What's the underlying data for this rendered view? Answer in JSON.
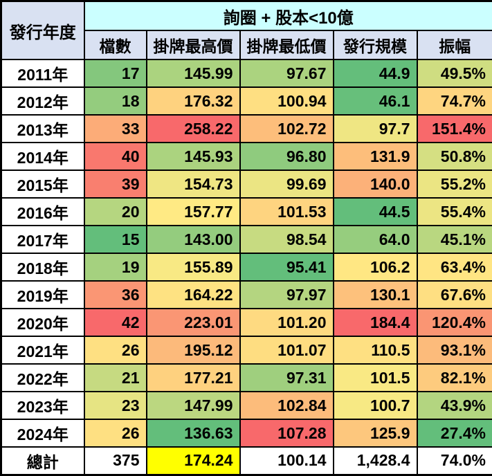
{
  "styles": {
    "header_top_bg": "#CBFFFF",
    "header_sub_bg": "#D9E1F2",
    "border_color": "#000000",
    "total_highlight": "#FFFF00"
  },
  "chart_data": {
    "type": "table",
    "title": "詢圈 + 股本<10億",
    "row_header": "發行年度",
    "columns": [
      "檔數",
      "掛牌最高價",
      "掛牌最低價",
      "發行規模",
      "振幅"
    ],
    "heatmap_scale": {
      "low": "#63BE7B",
      "mid": "#FFEB84",
      "high": "#F8696B"
    },
    "rows": [
      {
        "year": "2011年",
        "values": [
          "17",
          "145.99",
          "97.67",
          "44.9",
          "49.5%"
        ],
        "colors": [
          "#84C77D",
          "#ABD37F",
          "#ABD37F",
          "#64BE7B",
          "#CFDD81"
        ]
      },
      {
        "year": "2012年",
        "values": [
          "18",
          "176.32",
          "100.94",
          "46.1",
          "74.7%"
        ],
        "colors": [
          "#94CC7E",
          "#FED27F",
          "#FEDF82",
          "#67BF7B",
          "#FED580"
        ]
      },
      {
        "year": "2013年",
        "values": [
          "33",
          "258.22",
          "102.72",
          "97.7",
          "151.4%"
        ],
        "colors": [
          "#FCAC78",
          "#F8696B",
          "#FDBE7B",
          "#EFE683",
          "#F8696B"
        ]
      },
      {
        "year": "2014年",
        "values": [
          "40",
          "145.93",
          "96.80",
          "131.9",
          "50.8%"
        ],
        "colors": [
          "#F9786E",
          "#ABD37F",
          "#8FCB7E",
          "#FDBE7B",
          "#D5DF82"
        ]
      },
      {
        "year": "2015年",
        "values": [
          "39",
          "154.73",
          "99.69",
          "140.0",
          "55.2%"
        ],
        "colors": [
          "#F97F6F",
          "#EFE683",
          "#EBE583",
          "#FCB179",
          "#EBE583"
        ]
      },
      {
        "year": "2016年",
        "values": [
          "20",
          "157.77",
          "101.53",
          "44.5",
          "55.4%"
        ],
        "colors": [
          "#B5D680",
          "#FFEA84",
          "#FED480",
          "#63BE7B",
          "#ECE583"
        ]
      },
      {
        "year": "2017年",
        "values": [
          "15",
          "143.00",
          "98.54",
          "64.0",
          "45.1%"
        ],
        "colors": [
          "#63BE7B",
          "#94CC7E",
          "#C7DB81",
          "#96CD7E",
          "#B9D780"
        ]
      },
      {
        "year": "2018年",
        "values": [
          "19",
          "155.89",
          "95.41",
          "106.2",
          "63.4%"
        ],
        "colors": [
          "#A5D17F",
          "#F8E984",
          "#63BE7B",
          "#FFE783",
          "#FFE583"
        ]
      },
      {
        "year": "2019年",
        "values": [
          "36",
          "164.22",
          "97.97",
          "130.1",
          "67.6%"
        ],
        "colors": [
          "#FA9674",
          "#FEE282",
          "#B4D580",
          "#FDC17C",
          "#FEDF82"
        ]
      },
      {
        "year": "2020年",
        "values": [
          "42",
          "223.01",
          "101.20",
          "184.4",
          "120.4%"
        ],
        "colors": [
          "#F8696B",
          "#FA9674",
          "#FEDA81",
          "#F8696B",
          "#FA9573"
        ]
      },
      {
        "year": "2021年",
        "values": [
          "26",
          "195.12",
          "101.07",
          "110.5",
          "93.1%"
        ],
        "colors": [
          "#FEE082",
          "#FCBA7B",
          "#FEDD81",
          "#FEE082",
          "#FCBB7B"
        ]
      },
      {
        "year": "2022年",
        "values": [
          "21",
          "177.21",
          "97.31",
          "101.5",
          "82.1%"
        ],
        "colors": [
          "#C6DA81",
          "#FED17F",
          "#9FCF7E",
          "#F9E984",
          "#FDCB7E"
        ]
      },
      {
        "year": "2023年",
        "values": [
          "23",
          "147.99",
          "102.84",
          "100.7",
          "43.9%"
        ],
        "colors": [
          "#E6E483",
          "#BBD780",
          "#FCBC7B",
          "#F7E984",
          "#B3D580"
        ]
      },
      {
        "year": "2024年",
        "values": [
          "26",
          "136.63",
          "107.28",
          "125.9",
          "27.4%"
        ],
        "colors": [
          "#FEE082",
          "#63BE7B",
          "#F8696B",
          "#FDC77D",
          "#63BE7B"
        ]
      },
      {
        "year": "總計",
        "values": [
          "375",
          "174.24",
          "100.14",
          "1,428.4",
          "74.0%"
        ],
        "colors": [
          "#FFFFFF",
          "#FFFF00",
          "#FFFFFF",
          "#FFFFFF",
          "#FFFFFF"
        ]
      }
    ]
  }
}
